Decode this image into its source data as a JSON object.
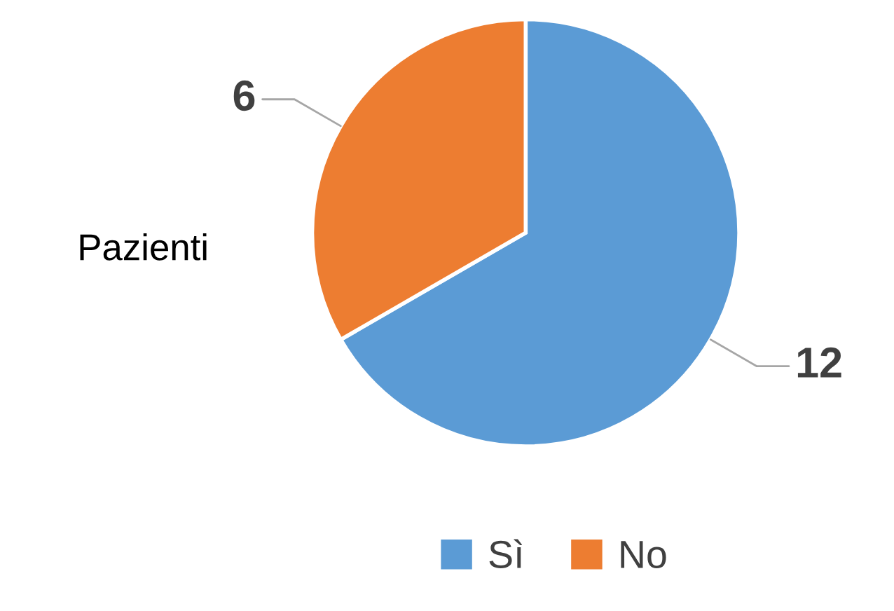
{
  "chart_data": {
    "type": "pie",
    "title": "Pazienti",
    "categories": [
      "Sì",
      "No"
    ],
    "values": [
      12,
      6
    ],
    "colors": [
      "#5b9bd5",
      "#ed7d31"
    ],
    "data_labels": true,
    "legend": "bottom"
  }
}
